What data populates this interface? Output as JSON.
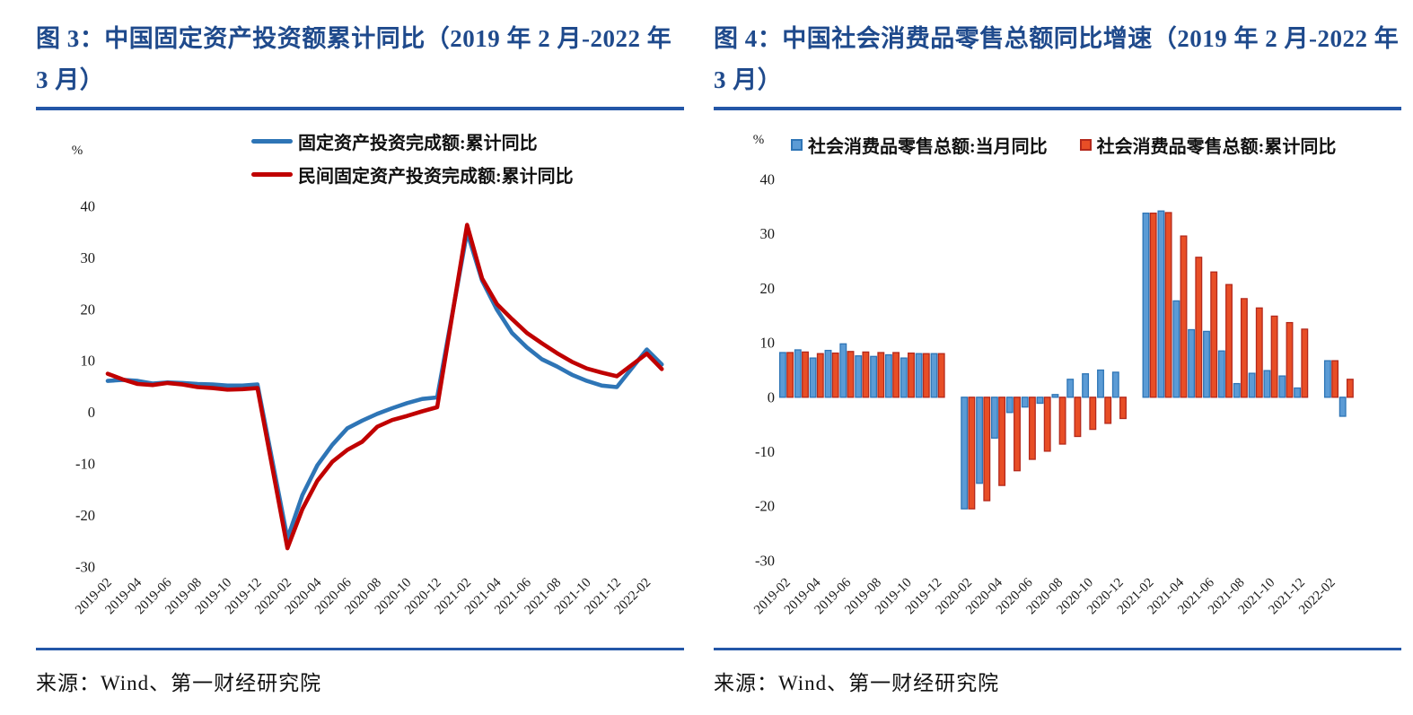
{
  "palette": {
    "title_blue": "#1f4a8c",
    "rule_blue": "#2356a7",
    "axis_text": "#1a1a1a",
    "line_blue": "#2e75b6",
    "line_red": "#c00000",
    "bar_blue_fill": "#5b9bd5",
    "bar_blue_border": "#2e75b6",
    "bar_red_fill": "#e84e26",
    "bar_red_border": "#b4291c"
  },
  "figures": [
    {
      "id": "fig3",
      "title": "图 3：中国固定资产投资额累计同比（2019 年 2 月-2022 年 3 月）",
      "source": "来源：Wind、第一财经研究院",
      "legend": [
        {
          "label": "固定资产投资完成额:累计同比",
          "swatch": "line"
        },
        {
          "label": "民间固定资产投资完成额:累计同比",
          "swatch": "line"
        }
      ]
    },
    {
      "id": "fig4",
      "title": "图 4：中国社会消费品零售总额同比增速（2019 年 2 月-2022 年 3 月）",
      "source": "来源：Wind、第一财经研究院",
      "legend": [
        {
          "label": "社会消费品零售总额:当月同比",
          "swatch": "square"
        },
        {
          "label": "社会消费品零售总额:累计同比",
          "swatch": "square"
        }
      ]
    }
  ],
  "chart_data": [
    {
      "type": "line",
      "title": "图 3：中国固定资产投资额累计同比（2019 年 2 月-2022 年 3 月）",
      "xlabel": "",
      "ylabel": "%",
      "unit": "%",
      "ylim": [
        -30,
        40
      ],
      "y_ticks": [
        40,
        30,
        20,
        10,
        0,
        -10,
        -20,
        -30
      ],
      "grid": false,
      "legend_position": "top",
      "x_tick_step": 2,
      "x": [
        "2019-02",
        "2019-03",
        "2019-04",
        "2019-05",
        "2019-06",
        "2019-07",
        "2019-08",
        "2019-09",
        "2019-10",
        "2019-11",
        "2019-12",
        "2020-01",
        "2020-02",
        "2020-03",
        "2020-04",
        "2020-05",
        "2020-06",
        "2020-07",
        "2020-08",
        "2020-09",
        "2020-10",
        "2020-11",
        "2020-12",
        "2021-01",
        "2021-02",
        "2021-03",
        "2021-04",
        "2021-05",
        "2021-06",
        "2021-07",
        "2021-08",
        "2021-09",
        "2021-10",
        "2021-11",
        "2021-12",
        "2022-01",
        "2022-02",
        "2022-03"
      ],
      "series": [
        {
          "name": "固定资产投资完成额:累计同比",
          "color": "#2e75b6",
          "values": [
            6.1,
            6.3,
            6.1,
            5.6,
            5.8,
            5.7,
            5.5,
            5.4,
            5.2,
            5.2,
            5.4,
            null,
            -24.5,
            -16.1,
            -10.3,
            -6.3,
            -3.1,
            -1.6,
            -0.3,
            0.8,
            1.8,
            2.6,
            2.9,
            null,
            35.0,
            25.6,
            19.9,
            15.4,
            12.6,
            10.3,
            8.9,
            7.3,
            6.1,
            5.2,
            4.9,
            null,
            12.2,
            9.3
          ]
        },
        {
          "name": "民间固定资产投资完成额:累计同比",
          "color": "#c00000",
          "values": [
            7.5,
            6.4,
            5.5,
            5.3,
            5.7,
            5.4,
            4.9,
            4.7,
            4.4,
            4.5,
            4.7,
            null,
            -26.4,
            -18.8,
            -13.3,
            -9.6,
            -7.3,
            -5.7,
            -2.8,
            -1.5,
            -0.7,
            0.2,
            1.0,
            null,
            36.4,
            26.0,
            21.0,
            18.1,
            15.4,
            13.4,
            11.5,
            9.8,
            8.5,
            7.7,
            7.0,
            null,
            11.4,
            8.4
          ]
        }
      ]
    },
    {
      "type": "bar",
      "title": "图 4：中国社会消费品零售总额同比增速（2019 年 2 月-2022 年 3 月）",
      "xlabel": "",
      "ylabel": "%",
      "unit": "%",
      "ylim": [
        -30,
        40
      ],
      "y_ticks": [
        40,
        30,
        20,
        10,
        0,
        -10,
        -20,
        -30
      ],
      "grid": false,
      "legend_position": "top",
      "x_tick_step": 2,
      "x": [
        "2019-02",
        "2019-03",
        "2019-04",
        "2019-05",
        "2019-06",
        "2019-07",
        "2019-08",
        "2019-09",
        "2019-10",
        "2019-11",
        "2019-12",
        "2020-01",
        "2020-02",
        "2020-03",
        "2020-04",
        "2020-05",
        "2020-06",
        "2020-07",
        "2020-08",
        "2020-09",
        "2020-10",
        "2020-11",
        "2020-12",
        "2021-01",
        "2021-02",
        "2021-03",
        "2021-04",
        "2021-05",
        "2021-06",
        "2021-07",
        "2021-08",
        "2021-09",
        "2021-10",
        "2021-11",
        "2021-12",
        "2022-01",
        "2022-02",
        "2022-03"
      ],
      "series": [
        {
          "name": "社会消费品零售总额:当月同比",
          "color": "#5b9bd5",
          "border": "#2e75b6",
          "values": [
            8.2,
            8.7,
            7.2,
            8.6,
            9.8,
            7.6,
            7.5,
            7.8,
            7.2,
            8.0,
            8.0,
            null,
            -20.5,
            -15.8,
            -7.5,
            -2.8,
            -1.8,
            -1.1,
            0.5,
            3.3,
            4.3,
            5.0,
            4.6,
            null,
            33.8,
            34.2,
            17.7,
            12.4,
            12.1,
            8.5,
            2.5,
            4.4,
            4.9,
            3.9,
            1.7,
            null,
            6.7,
            -3.5
          ]
        },
        {
          "name": "社会消费品零售总额:累计同比",
          "color": "#e84e26",
          "border": "#b4291c",
          "values": [
            8.2,
            8.3,
            8.0,
            8.1,
            8.4,
            8.3,
            8.2,
            8.2,
            8.1,
            8.0,
            8.0,
            null,
            -20.5,
            -19.0,
            -16.2,
            -13.5,
            -11.4,
            -9.9,
            -8.6,
            -7.2,
            -5.9,
            -4.8,
            -3.9,
            null,
            33.8,
            33.9,
            29.6,
            25.7,
            23.0,
            20.7,
            18.1,
            16.4,
            14.9,
            13.7,
            12.5,
            null,
            6.7,
            3.3
          ]
        }
      ]
    }
  ]
}
